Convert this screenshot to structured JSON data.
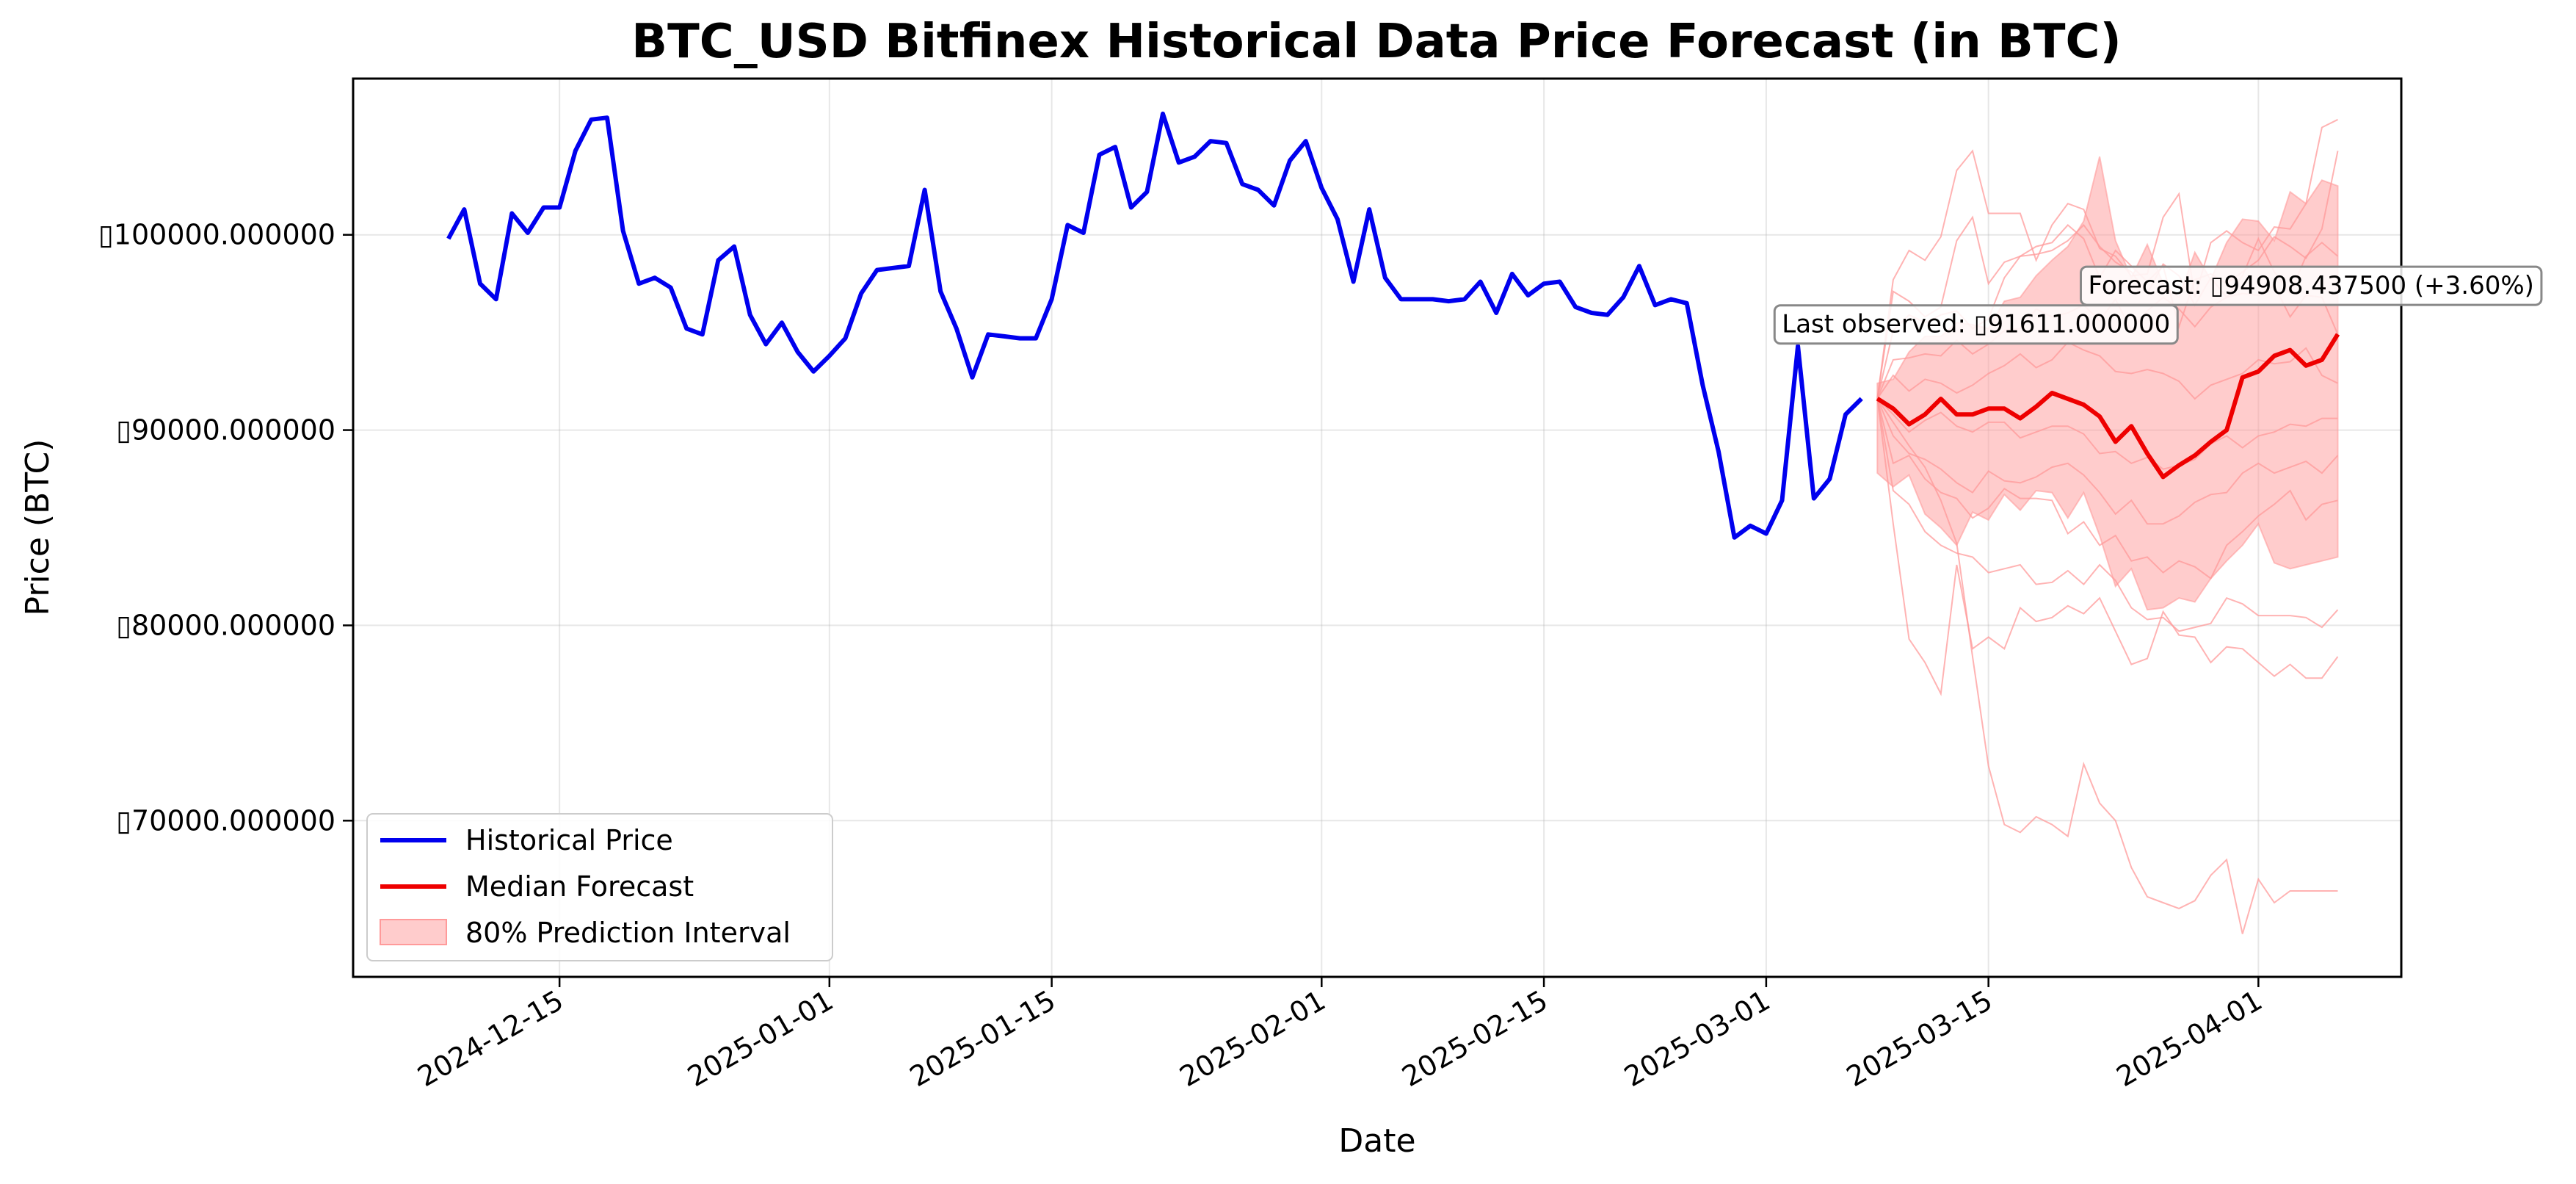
{
  "chart_data": {
    "type": "line",
    "title": "BTC_USD Bitfinex Historical Data Price Forecast (in BTC)",
    "xlabel": "Date",
    "ylabel": "Price (BTC)",
    "x_start": "2024-12-08",
    "x_step_days": 1,
    "xlim": [
      "2024-12-02",
      "2025-04-10"
    ],
    "ylim": [
      62000,
      108000
    ],
    "grid": true,
    "legend_position": "lower left",
    "x_ticks": [
      "2024-12-15",
      "2025-01-01",
      "2025-01-15",
      "2025-02-01",
      "2025-02-15",
      "2025-03-01",
      "2025-03-15",
      "2025-04-01"
    ],
    "y_ticks": [
      70000,
      80000,
      90000,
      100000
    ],
    "y_tick_labels": [
      "▯70000.000000",
      "▯80000.000000",
      "▯90000.000000",
      "▯100000.000000"
    ],
    "historical": {
      "name": "Historical Price",
      "color": "#0000ee",
      "values": [
        99800,
        101300,
        97500,
        96700,
        101100,
        100100,
        101400,
        101400,
        104300,
        105900,
        106000,
        100200,
        97500,
        97800,
        97300,
        95200,
        94900,
        98700,
        99400,
        95900,
        94400,
        95500,
        94000,
        93000,
        93800,
        94700,
        97000,
        98200,
        98300,
        98400,
        102300,
        97100,
        95200,
        92700,
        94900,
        94800,
        94700,
        94700,
        96700,
        100500,
        100100,
        104100,
        104500,
        101400,
        102200,
        106200,
        103700,
        104000,
        104800,
        104700,
        102600,
        102300,
        101500,
        103800,
        104800,
        102400,
        100800,
        97600,
        101300,
        97800,
        96700,
        96700,
        96700,
        96600,
        96700,
        97600,
        96000,
        98000,
        96900,
        97500,
        97600,
        96300,
        96000,
        95900,
        96800,
        98400,
        96400,
        96700,
        96500,
        92300,
        88900,
        84500,
        85100,
        84700,
        86400,
        94300,
        86500,
        87500,
        90800,
        91611
      ]
    },
    "forecast_start": "2025-03-08",
    "median": {
      "name": "Median Forecast",
      "color": "#ee0000",
      "values": [
        91611,
        91100,
        90300,
        90800,
        91600,
        90800,
        90800,
        91100,
        91100,
        90600,
        91200,
        91900,
        91600,
        91300,
        90700,
        89400,
        90200,
        88800,
        87600,
        88200,
        88700,
        89400,
        90000,
        92700,
        93000,
        93800,
        94100,
        93300,
        93600,
        94908
      ]
    },
    "interval": {
      "name": "80% Prediction Interval",
      "color": "#ff9a9a",
      "lower": [
        87800,
        87100,
        87700,
        85700,
        85000,
        84100,
        85800,
        85400,
        86700,
        85900,
        86900,
        86800,
        85500,
        86800,
        84600,
        82000,
        82900,
        80800,
        80900,
        81400,
        81200,
        82400,
        83300,
        84100,
        85200,
        83200,
        82900,
        83100,
        83300,
        83500
      ],
      "upper": [
        92400,
        92600,
        94000,
        94800,
        94800,
        95500,
        95400,
        95200,
        96600,
        96800,
        97900,
        98700,
        99400,
        100700,
        104000,
        99700,
        97800,
        99500,
        97500,
        96800,
        99100,
        97700,
        99600,
        100800,
        100700,
        99700,
        102200,
        101600,
        102800,
        102500
      ]
    },
    "sample_paths": [
      [
        91611,
        97700,
        99200,
        98700,
        99900,
        103300,
        104300,
        101100,
        101100,
        101100,
        98700,
        100500,
        101600,
        101300,
        99300,
        98900,
        97900,
        98000,
        100900,
        102100,
        96800,
        99600,
        100200,
        99600,
        99200,
        100400,
        100300,
        101600,
        105500,
        105900
      ],
      [
        91611,
        97100,
        96600,
        95800,
        96300,
        99700,
        100900,
        97500,
        98600,
        98900,
        99400,
        99600,
        100500,
        99800,
        97800,
        99200,
        98400,
        97600,
        98400,
        95300,
        97700,
        98000,
        97500,
        98100,
        98700,
        99900,
        99400,
        98800,
        100300,
        104300
      ],
      [
        91611,
        95100,
        95900,
        95500,
        95900,
        96100,
        95200,
        95700,
        97800,
        98900,
        99000,
        99200,
        99700,
        100500,
        99400,
        98600,
        98100,
        97000,
        98500,
        97900,
        96400,
        97800,
        96800,
        97900,
        99800,
        98100,
        97000,
        98900,
        99600,
        98900
      ],
      [
        91611,
        93600,
        93700,
        93900,
        93800,
        94600,
        93900,
        94400,
        95100,
        95200,
        96200,
        95800,
        96000,
        96400,
        95600,
        96700,
        95100,
        96100,
        96800,
        96200,
        95300,
        96300,
        96800,
        97000,
        96900,
        97400,
        95800,
        96900,
        96800,
        94900
      ],
      [
        91611,
        92800,
        92000,
        92600,
        92400,
        91900,
        92300,
        92900,
        93300,
        93900,
        93200,
        93600,
        94500,
        94100,
        93800,
        93000,
        92900,
        93100,
        92900,
        92500,
        91600,
        92300,
        92600,
        92900,
        93600,
        93400,
        93500,
        94200,
        92800,
        92400
      ],
      [
        91611,
        90800,
        89900,
        90500,
        90900,
        90200,
        89900,
        90400,
        90400,
        89600,
        89900,
        90200,
        90200,
        89800,
        88800,
        88900,
        88300,
        88600,
        88000,
        88200,
        88500,
        89300,
        89700,
        89100,
        89700,
        89900,
        90300,
        90200,
        90600,
        90600
      ],
      [
        91611,
        89700,
        88800,
        88500,
        88000,
        87300,
        86800,
        87900,
        87400,
        87300,
        87600,
        88100,
        88300,
        87700,
        86800,
        85700,
        86400,
        85200,
        85200,
        85600,
        86300,
        86700,
        86800,
        87800,
        88300,
        87800,
        88100,
        88400,
        87800,
        88700
      ],
      [
        91611,
        88300,
        88700,
        87500,
        86800,
        86500,
        85500,
        86000,
        87000,
        86500,
        86500,
        86400,
        84700,
        85300,
        84100,
        84600,
        83300,
        83500,
        82700,
        83300,
        83000,
        82400,
        84100,
        84800,
        85600,
        86200,
        86900,
        85400,
        86200,
        86400
      ],
      [
        91611,
        86900,
        86200,
        84800,
        84100,
        83700,
        83500,
        82700,
        82900,
        83100,
        82100,
        82200,
        82800,
        82100,
        83100,
        82300,
        80900,
        80300,
        80400,
        79700,
        79900,
        80100,
        81400,
        81100,
        80500,
        80500,
        80500,
        80400,
        79900,
        80800
      ],
      [
        91611,
        85200,
        79300,
        78100,
        76500,
        83100,
        78800,
        79400,
        78800,
        80900,
        80200,
        80400,
        81000,
        80600,
        81400,
        79700,
        78000,
        78300,
        80700,
        79500,
        79400,
        78100,
        78900,
        78800,
        78100,
        77400,
        78000,
        77300,
        77300,
        78400
      ],
      [
        91611,
        90400,
        89200,
        88100,
        86400,
        84200,
        78400,
        72800,
        69800,
        69400,
        70200,
        69800,
        69200,
        72900,
        70900,
        70000,
        67600,
        66100,
        65800,
        65500,
        65900,
        67200,
        68000,
        64200,
        67000,
        65800,
        66400,
        66400,
        66400,
        66400
      ]
    ],
    "annotations": [
      {
        "text": "Last observed: ▯91611.000000",
        "date": "2025-03-08",
        "value": 91611
      },
      {
        "text": "Forecast: ▯94908.437500 (+3.60%)",
        "date": "2025-04-06",
        "value": 94908
      }
    ]
  }
}
